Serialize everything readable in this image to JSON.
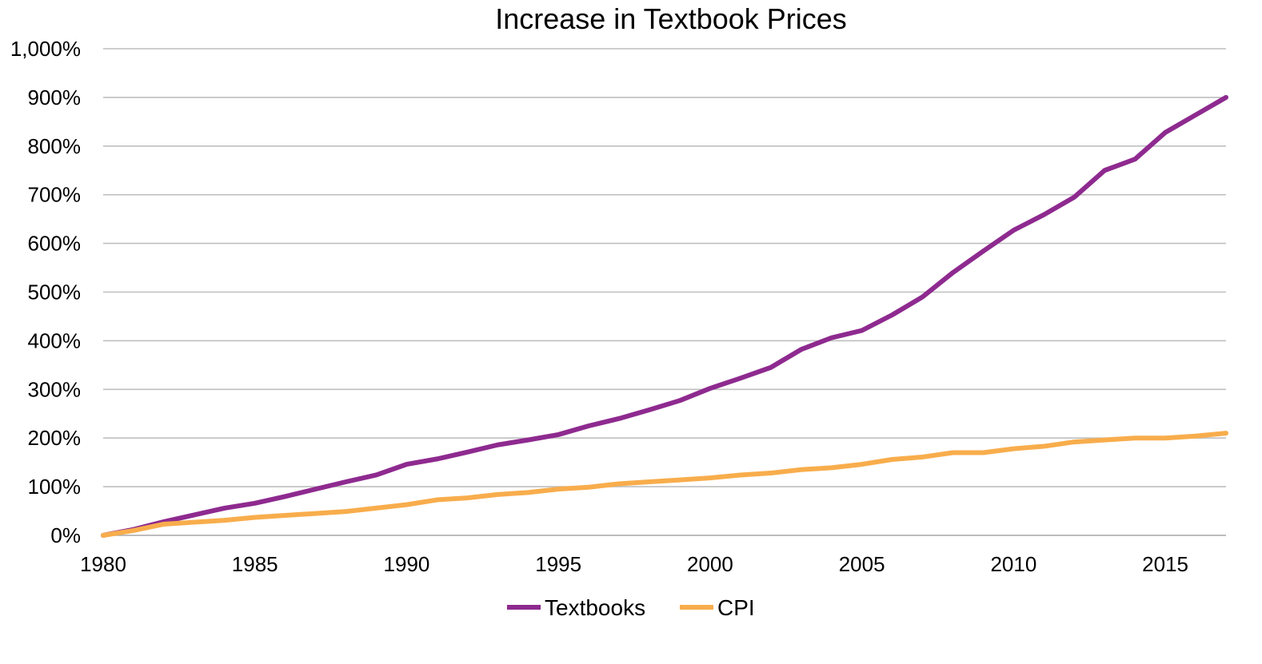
{
  "chart_data": {
    "type": "line",
    "title": "Increase in Textbook Prices",
    "xlabel": "",
    "ylabel": "",
    "x": [
      1980,
      1981,
      1982,
      1983,
      1984,
      1985,
      1986,
      1987,
      1988,
      1989,
      1990,
      1991,
      1992,
      1993,
      1994,
      1995,
      1996,
      1997,
      1998,
      1999,
      2000,
      2001,
      2002,
      2003,
      2004,
      2005,
      2006,
      2007,
      2008,
      2009,
      2010,
      2011,
      2012,
      2013,
      2014,
      2015,
      2016,
      2017
    ],
    "x_ticks": [
      1980,
      1985,
      1990,
      1995,
      2000,
      2005,
      2010,
      2015
    ],
    "x_tick_labels": [
      "1980",
      "1985",
      "1990",
      "1995",
      "2000",
      "2005",
      "2010",
      "2015"
    ],
    "xlim": [
      1980,
      2017
    ],
    "ylim": [
      0,
      1000
    ],
    "y_ticks": [
      0,
      100,
      200,
      300,
      400,
      500,
      600,
      700,
      800,
      900,
      1000
    ],
    "y_tick_labels": [
      "0%",
      "100%",
      "200%",
      "300%",
      "400%",
      "500%",
      "600%",
      "700%",
      "800%",
      "900%",
      "1,000%"
    ],
    "grid": true,
    "legend_position": "bottom",
    "series": [
      {
        "name": "Textbooks",
        "color": "#8e2a8f",
        "values": [
          0,
          12,
          28,
          42,
          56,
          66,
          80,
          95,
          110,
          124,
          146,
          157,
          171,
          186,
          196,
          207,
          225,
          240,
          258,
          277,
          302,
          323,
          345,
          382,
          406,
          421,
          453,
          490,
          540,
          584,
          627,
          659,
          695,
          750,
          773,
          828,
          864,
          900
        ]
      },
      {
        "name": "CPI",
        "color": "#f8ad4c",
        "values": [
          0,
          10,
          23,
          27,
          31,
          37,
          41,
          45,
          49,
          56,
          63,
          73,
          77,
          84,
          88,
          95,
          99,
          106,
          110,
          114,
          118,
          124,
          128,
          135,
          139,
          146,
          156,
          161,
          170,
          170,
          178,
          183,
          192,
          196,
          200,
          200,
          204,
          210
        ]
      }
    ]
  }
}
